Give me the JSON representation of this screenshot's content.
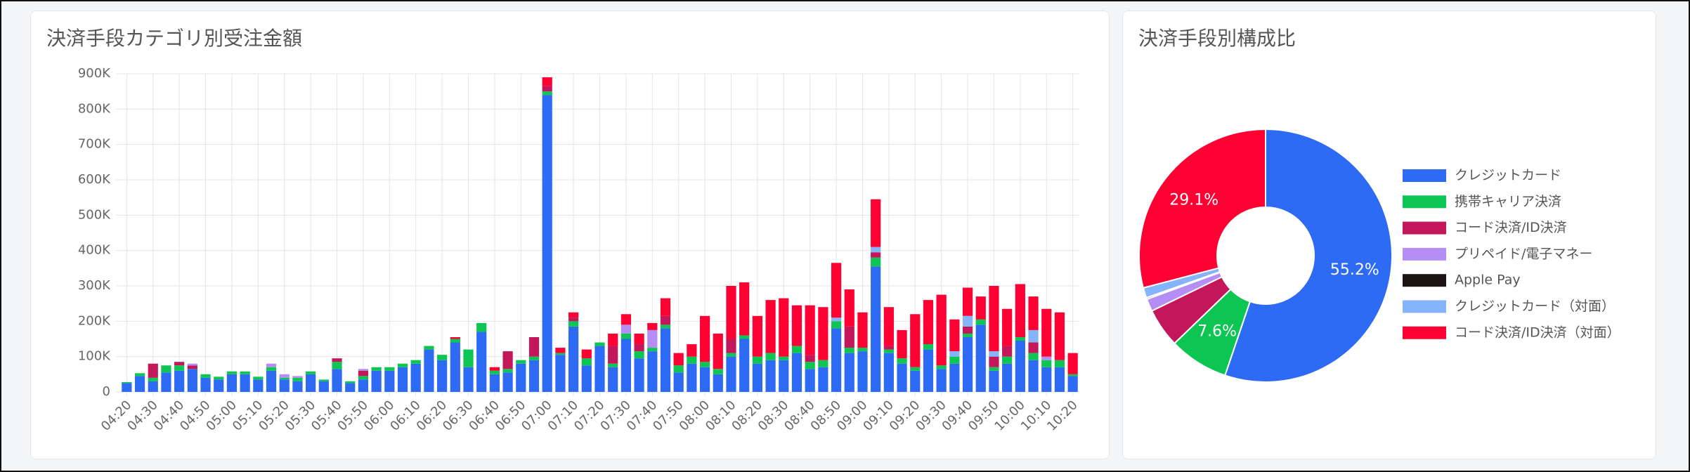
{
  "chart_data": [
    {
      "type": "bar",
      "title": "決済手段カテゴリ別受注金額",
      "categories": [
        "04:20",
        null,
        "04:30",
        null,
        "04:40",
        null,
        "04:50",
        null,
        "05:00",
        null,
        "05:10",
        null,
        "05:20",
        null,
        "05:30",
        null,
        "05:40",
        null,
        "05:50",
        null,
        "06:00",
        null,
        "06:10",
        null,
        "06:20",
        null,
        "06:30",
        null,
        "06:40",
        null,
        "06:50",
        null,
        "07:00",
        null,
        "07:10",
        null,
        "07:20",
        null,
        "07:30",
        null,
        "07:40",
        null,
        "07:50",
        null,
        "08:00",
        null,
        "08:10",
        null,
        "08:20",
        null,
        "08:30",
        null,
        "08:40",
        null,
        "08:50",
        null,
        "09:00",
        null,
        "09:10",
        null,
        "09:20",
        null,
        "09:30",
        null,
        "09:40",
        null,
        "09:50",
        null,
        "10:00",
        null,
        "10:10",
        null,
        "10:20"
      ],
      "stacked": true,
      "grid": true,
      "ylim": [
        0,
        900000
      ],
      "yticks": [
        0,
        {
          "value": 100000,
          "label": "100K"
        },
        {
          "value": 200000,
          "label": "200K"
        },
        {
          "value": 300000,
          "label": "300K"
        },
        {
          "value": 400000,
          "label": "400K"
        },
        {
          "value": 500000,
          "label": "500K"
        },
        {
          "value": 600000,
          "label": "600K"
        },
        {
          "value": 700000,
          "label": "700K"
        },
        {
          "value": 800000,
          "label": "800K"
        },
        {
          "value": 900000,
          "label": "900K"
        }
      ],
      "series": [
        {
          "color": "#2d6bf5",
          "values": [
            25000,
            45000,
            30000,
            55000,
            60000,
            65000,
            40000,
            35000,
            50000,
            50000,
            35000,
            60000,
            35000,
            30000,
            50000,
            30000,
            65000,
            25000,
            35000,
            60000,
            60000,
            70000,
            80000,
            120000,
            90000,
            140000,
            70000,
            170000,
            50000,
            55000,
            80000,
            90000,
            840000,
            105000,
            185000,
            75000,
            130000,
            70000,
            150000,
            95000,
            115000,
            180000,
            55000,
            80000,
            70000,
            50000,
            100000,
            150000,
            80000,
            90000,
            90000,
            110000,
            65000,
            70000,
            180000,
            110000,
            115000,
            355000,
            110000,
            80000,
            60000,
            120000,
            65000,
            80000,
            155000,
            190000,
            60000,
            80000,
            145000,
            90000,
            70000,
            70000,
            45000
          ]
        },
        {
          "color": "#0cc552",
          "values": [
            3000,
            8000,
            10000,
            20000,
            15000,
            0,
            10000,
            8000,
            8000,
            8000,
            8000,
            10000,
            5000,
            10000,
            8000,
            5000,
            20000,
            5000,
            10000,
            10000,
            10000,
            10000,
            10000,
            10000,
            15000,
            10000,
            50000,
            25000,
            10000,
            10000,
            10000,
            10000,
            10000,
            5000,
            15000,
            20000,
            10000,
            10000,
            15000,
            20000,
            10000,
            10000,
            20000,
            20000,
            15000,
            15000,
            10000,
            10000,
            20000,
            20000,
            10000,
            20000,
            20000,
            20000,
            20000,
            15000,
            10000,
            25000,
            10000,
            15000,
            10000,
            15000,
            10000,
            20000,
            10000,
            15000,
            10000,
            20000,
            10000,
            20000,
            20000,
            20000,
            5000
          ]
        },
        {
          "color": "#c2185b",
          "values": [
            0,
            0,
            40000,
            0,
            10000,
            10000,
            0,
            0,
            0,
            0,
            0,
            0,
            0,
            0,
            0,
            0,
            10000,
            0,
            15000,
            0,
            0,
            0,
            0,
            0,
            0,
            0,
            0,
            0,
            0,
            50000,
            0,
            55000,
            15000,
            0,
            10000,
            0,
            0,
            50000,
            0,
            20000,
            0,
            25000,
            0,
            0,
            0,
            0,
            40000,
            0,
            0,
            0,
            0,
            0,
            20000,
            0,
            0,
            60000,
            0,
            15000,
            10000,
            0,
            0,
            0,
            0,
            0,
            20000,
            0,
            30000,
            30000,
            0,
            30000,
            0,
            0,
            0
          ]
        },
        {
          "color": "#b48ef5",
          "values": [
            0,
            0,
            0,
            0,
            0,
            5000,
            0,
            0,
            0,
            0,
            0,
            10000,
            10000,
            5000,
            0,
            0,
            0,
            0,
            5000,
            0,
            0,
            0,
            0,
            0,
            0,
            0,
            0,
            0,
            0,
            0,
            0,
            0,
            0,
            0,
            0,
            0,
            0,
            0,
            25000,
            0,
            50000,
            0,
            0,
            0,
            0,
            0,
            0,
            0,
            0,
            0,
            0,
            0,
            0,
            0,
            0,
            0,
            0,
            0,
            0,
            0,
            0,
            0,
            0,
            0,
            0,
            0,
            0,
            0,
            0,
            0,
            10000,
            0,
            0
          ]
        },
        {
          "color": "#1a1414",
          "values": [
            0,
            0,
            0,
            0,
            0,
            0,
            0,
            0,
            0,
            0,
            0,
            0,
            0,
            0,
            0,
            0,
            0,
            0,
            0,
            0,
            0,
            0,
            0,
            0,
            0,
            0,
            0,
            0,
            0,
            0,
            0,
            0,
            0,
            0,
            0,
            0,
            0,
            0,
            0,
            0,
            0,
            0,
            0,
            0,
            0,
            0,
            0,
            0,
            0,
            0,
            0,
            0,
            0,
            0,
            0,
            0,
            0,
            0,
            0,
            0,
            0,
            0,
            0,
            0,
            0,
            0,
            0,
            0,
            0,
            0,
            0,
            0,
            0
          ]
        },
        {
          "color": "#85b4fa",
          "values": [
            0,
            0,
            0,
            0,
            0,
            0,
            0,
            0,
            0,
            0,
            0,
            0,
            0,
            0,
            0,
            0,
            0,
            0,
            0,
            0,
            0,
            0,
            0,
            0,
            0,
            0,
            0,
            0,
            0,
            0,
            0,
            0,
            0,
            0,
            0,
            0,
            0,
            0,
            0,
            0,
            0,
            0,
            0,
            0,
            0,
            0,
            0,
            0,
            0,
            0,
            0,
            0,
            0,
            0,
            10000,
            0,
            0,
            15000,
            0,
            0,
            0,
            0,
            0,
            15000,
            30000,
            0,
            15000,
            0,
            0,
            35000,
            0,
            0,
            0
          ]
        },
        {
          "color": "#ff0033",
          "values": [
            0,
            0,
            0,
            0,
            0,
            0,
            0,
            0,
            0,
            0,
            0,
            0,
            0,
            0,
            0,
            0,
            0,
            0,
            0,
            0,
            0,
            0,
            0,
            0,
            0,
            5000,
            0,
            0,
            10000,
            0,
            0,
            0,
            25000,
            15000,
            15000,
            25000,
            0,
            35000,
            30000,
            30000,
            20000,
            50000,
            35000,
            35000,
            130000,
            100000,
            150000,
            150000,
            115000,
            150000,
            165000,
            115000,
            140000,
            150000,
            155000,
            105000,
            100000,
            135000,
            110000,
            80000,
            150000,
            125000,
            200000,
            90000,
            80000,
            65000,
            185000,
            105000,
            150000,
            95000,
            135000,
            135000,
            60000
          ]
        }
      ]
    },
    {
      "type": "pie",
      "title": "決済手段別構成比",
      "categories": [
        "クレジットカード",
        "携帯キャリア決済",
        "コード決済/ID決済",
        "プリペイド/電子マネー",
        "Apple Pay",
        "クレジットカード（対面）",
        "コード決済/ID決済（対面）"
      ],
      "values": [
        55.2,
        7.6,
        5.0,
        1.6,
        0.2,
        1.3,
        29.1
      ],
      "value_labels": [
        "55.2%",
        "7.6%",
        null,
        null,
        null,
        null,
        "29.1%"
      ],
      "colors": [
        "#2d6bf5",
        "#0cc552",
        "#c2185b",
        "#b48ef5",
        "#1a1414",
        "#85b4fa",
        "#ff0033"
      ],
      "legend": "right"
    }
  ]
}
